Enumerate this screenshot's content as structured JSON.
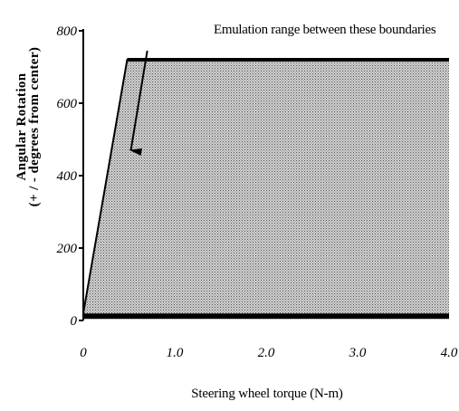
{
  "chart_data": {
    "type": "area",
    "title": "",
    "xlabel": "Steering wheel torque (N-m)",
    "ylabel": [
      "Angular Rotation",
      "(+ / - degrees from center)"
    ],
    "xlim": [
      0,
      4
    ],
    "ylim": [
      0,
      800
    ],
    "x_ticks": [
      {
        "value": 0,
        "label": "0"
      },
      {
        "value": 1,
        "label": "1.0"
      },
      {
        "value": 2,
        "label": "2.0"
      },
      {
        "value": 3,
        "label": "3.0"
      },
      {
        "value": 4,
        "label": "4.0"
      }
    ],
    "y_ticks": [
      {
        "value": 0,
        "label": "0"
      },
      {
        "value": 200,
        "label": "200"
      },
      {
        "value": 400,
        "label": "400"
      },
      {
        "value": 600,
        "label": "600"
      },
      {
        "value": 800,
        "label": "800"
      }
    ],
    "region": {
      "upper_boundary": [
        {
          "x": 0,
          "y": 20
        },
        {
          "x": 0.48,
          "y": 720
        },
        {
          "x": 4.0,
          "y": 720
        }
      ],
      "lower_boundary": [
        {
          "x": 0,
          "y": 12
        },
        {
          "x": 4.0,
          "y": 12
        }
      ],
      "fill": "stippled-gray"
    },
    "annotation": {
      "text": "Emulation range between these boundaries",
      "arrow_from": {
        "x": 0.7,
        "y": 745
      },
      "arrow_to": {
        "x": 0.52,
        "y": 470
      }
    },
    "grid": false,
    "legend": "none"
  }
}
